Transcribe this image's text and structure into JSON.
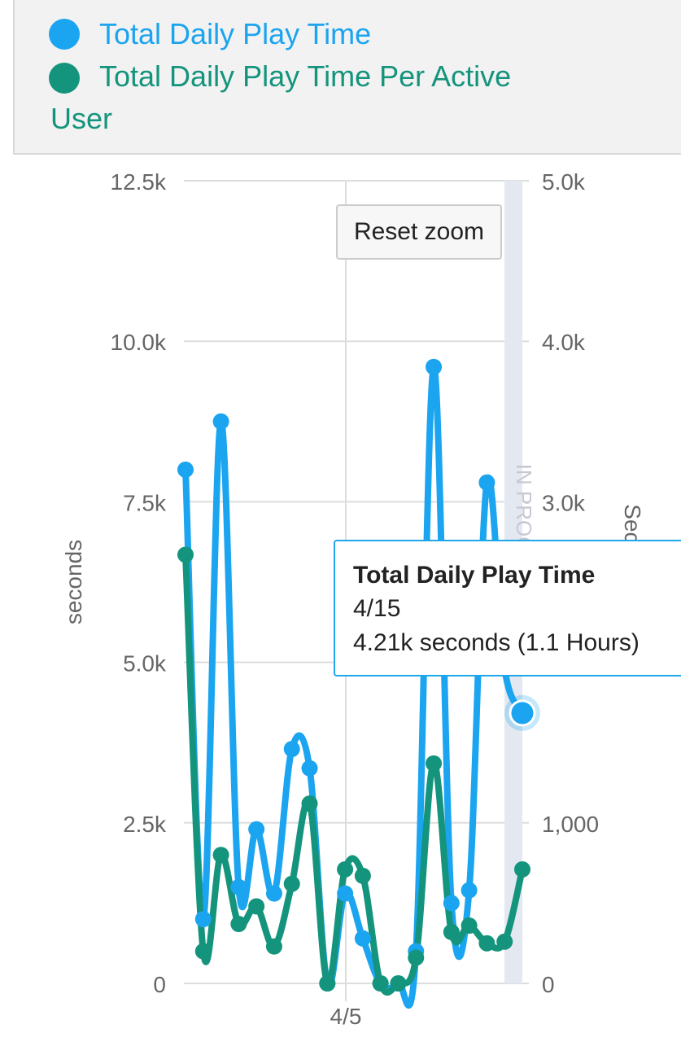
{
  "legend": {
    "items": [
      {
        "label": "Total Daily Play Time",
        "color": "#1ba4ef"
      },
      {
        "label": "Total Daily Play Time Per Active User",
        "color": "#14947c"
      }
    ]
  },
  "reset_zoom_label": "Reset zoom",
  "tooltip": {
    "title": "Total Daily Play Time",
    "date": "4/15",
    "value_text": "4.21k seconds (1.1 Hours)"
  },
  "chart_data": {
    "type": "line",
    "x_tick_labels": [
      "4/5"
    ],
    "y_left": {
      "label": "seconds",
      "ticks": [
        "0",
        "2.5k",
        "5.0k",
        "7.5k",
        "10.0k",
        "12.5k"
      ],
      "range": [
        0,
        12500
      ]
    },
    "y_right": {
      "label": "Seconds / User",
      "ticks": [
        "0",
        "1,000",
        "2.0k",
        "3.0k",
        "4.0k",
        "5.0k"
      ],
      "range": [
        0,
        5000
      ]
    },
    "band_label": "IN PROGRESS",
    "series": [
      {
        "name": "Total Daily Play Time",
        "axis": "left",
        "color": "#1ba4ef",
        "values": [
          8000,
          1000,
          8750,
          1500,
          2400,
          1400,
          3650,
          3350,
          0,
          1400,
          700,
          0,
          0,
          500,
          9600,
          1250,
          1450,
          7800,
          4900,
          4210
        ]
      },
      {
        "name": "Total Daily Play Time Per Active User",
        "axis": "right",
        "color": "#14947c",
        "values": [
          2670,
          200,
          800,
          370,
          480,
          230,
          620,
          1120,
          0,
          710,
          670,
          0,
          0,
          160,
          1370,
          320,
          360,
          250,
          260,
          710
        ]
      }
    ],
    "highlight": {
      "series": 0,
      "index": 19
    }
  }
}
